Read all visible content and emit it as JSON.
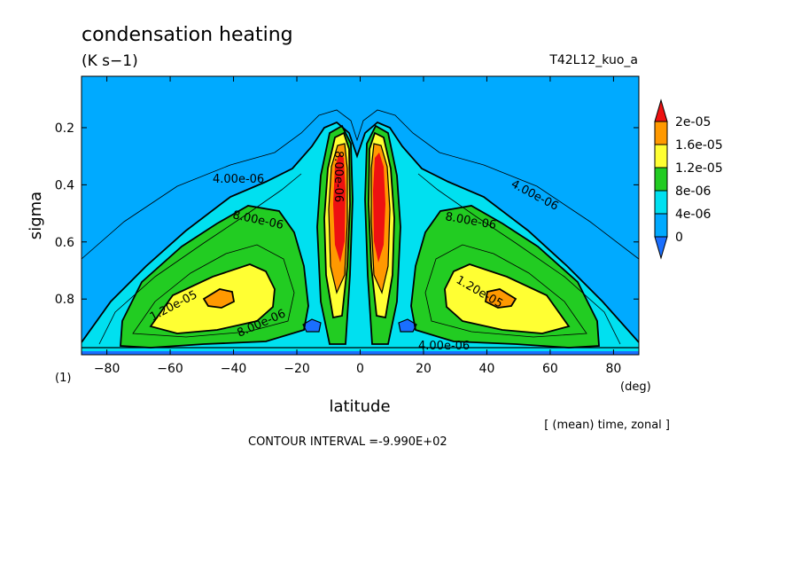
{
  "chart_data": {
    "type": "contour",
    "title": "condensation heating",
    "units": "(K s−1)",
    "run_id": "T42L12_kuo_a",
    "xlabel": "latitude",
    "x_unit": "(deg)",
    "ylabel": "sigma",
    "y_unit": "(1)",
    "subtitle": "[ (mean) time, zonal ]",
    "contour_interval": "CONTOUR INTERVAL =-9.990E+02",
    "xlim": [
      -88,
      88
    ],
    "ylim": [
      0.02,
      0.995
    ],
    "y_inverted": true,
    "x_ticks": [
      -80,
      -60,
      -40,
      -20,
      0,
      20,
      40,
      60,
      80
    ],
    "x_tick_labels": [
      "−80",
      "−60",
      "−40",
      "−20",
      "0",
      "20",
      "40",
      "60",
      "80"
    ],
    "y_ticks": [
      0.2,
      0.4,
      0.6,
      0.8
    ],
    "y_tick_labels": [
      "0.2",
      "0.4",
      "0.6",
      "0.8"
    ],
    "colorbar": {
      "labels": [
        "2e-05",
        "1.6e-05",
        "1.2e-05",
        "8e-06",
        "4e-06",
        "0"
      ],
      "bands": [
        {
          "from": 0,
          "to": 4e-06,
          "color": "#00aaff"
        },
        {
          "from": 4e-06,
          "to": 8e-06,
          "color": "#00e0f0"
        },
        {
          "from": 8e-06,
          "to": 1.2e-05,
          "color": "#22cc22"
        },
        {
          "from": 1.2e-05,
          "to": 1.6e-05,
          "color": "#ffff33"
        },
        {
          "from": 1.6e-05,
          "to": 2e-05,
          "color": "#ff9900"
        },
        {
          "from": 2e-05,
          "to": 2.4e-05,
          "color": "#ee1111"
        }
      ],
      "under_color": "#1a6fff",
      "over_color": "#ee1111"
    },
    "contour_labels": [
      "4.00e-06",
      "4.00e-06",
      "8.00e-06",
      "8.00e-06",
      "1.20e-05",
      "8.00e-06",
      "1.20e-05",
      "8.00e-06",
      "4.00e-06"
    ]
  }
}
